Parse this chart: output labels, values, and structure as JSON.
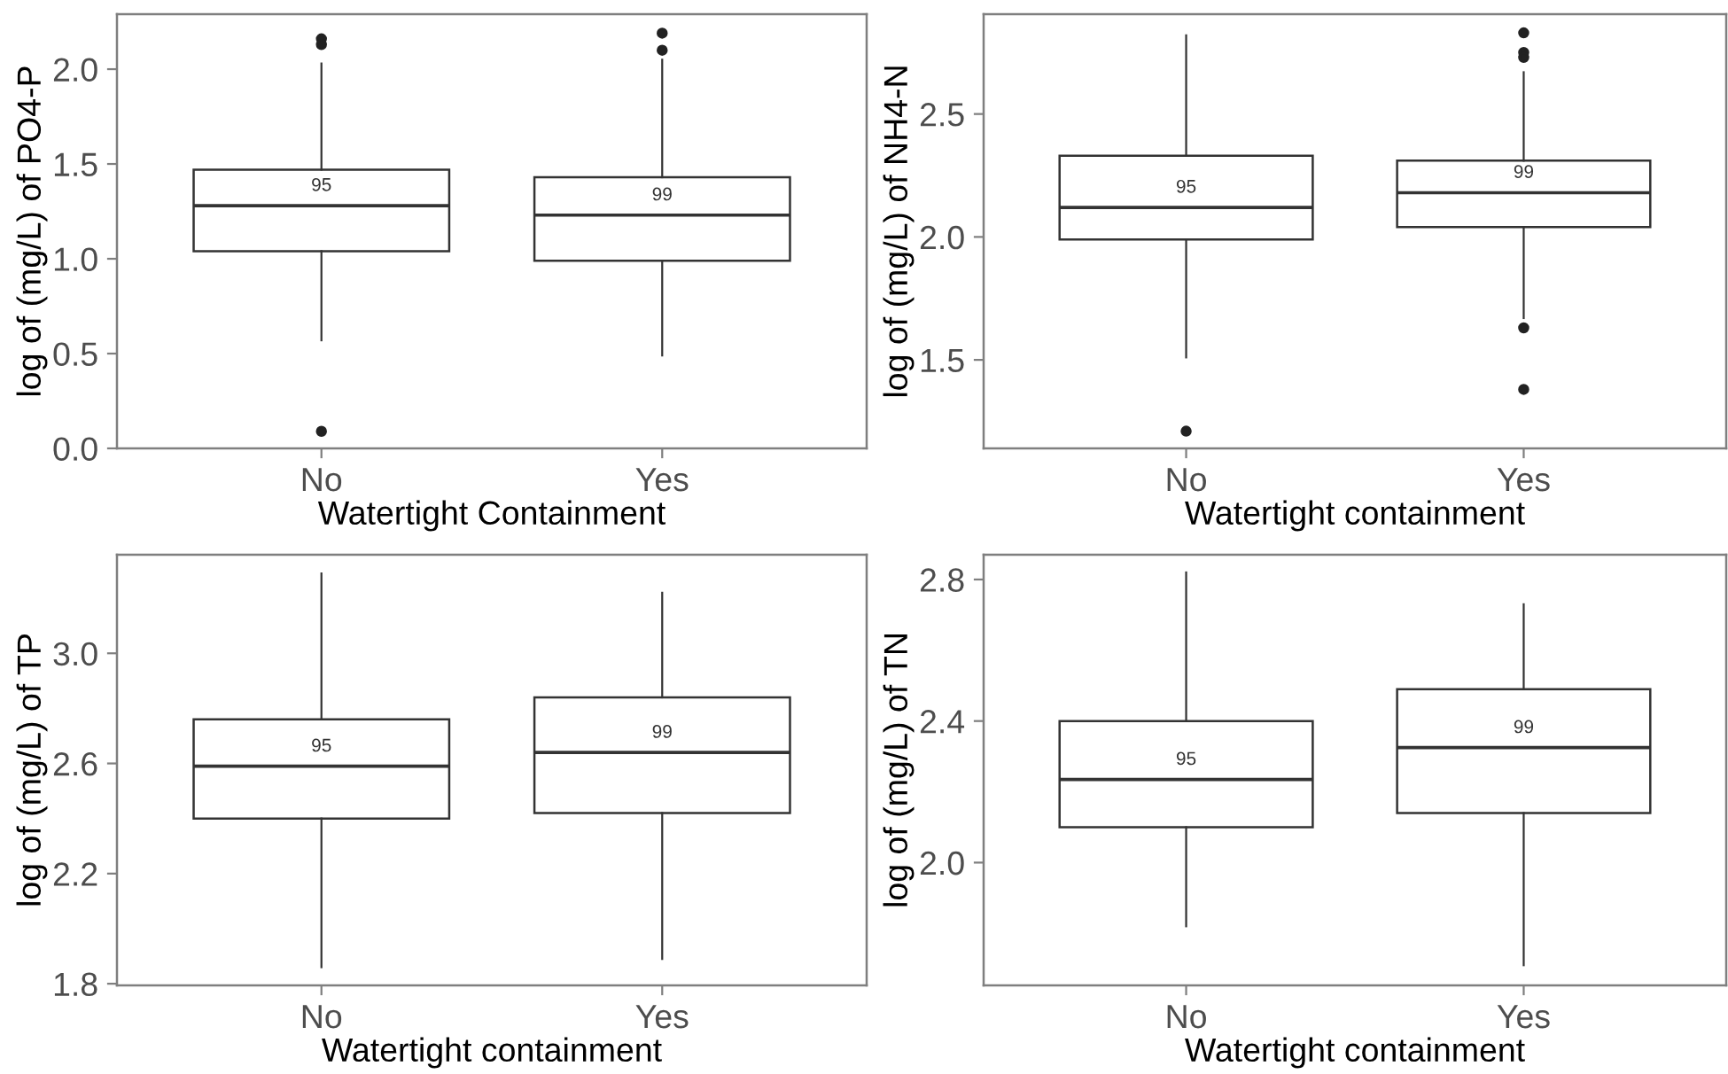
{
  "chart_data": [
    {
      "type": "box",
      "categories": [
        "No",
        "Yes"
      ],
      "xlabel": "Watertight Containment",
      "ylabel": "log of (mg/L) of PO4-P",
      "ylim": [
        0.0,
        2.29
      ],
      "yticks": [
        {
          "value": 0,
          "label": "0.0"
        },
        0.5,
        {
          "value": 1,
          "label": "1.0"
        },
        1.5,
        {
          "value": 2,
          "label": "2.0"
        }
      ],
      "grid": false,
      "boxes": [
        {
          "low": 0.57,
          "q1": 1.04,
          "median": 1.28,
          "q3": 1.47,
          "high": 2.03,
          "outliers": [
            2.16,
            2.13,
            0.09
          ]
        },
        {
          "low": 0.49,
          "q1": 0.99,
          "median": 1.23,
          "q3": 1.43,
          "high": 2.05,
          "outliers": [
            2.19,
            2.1
          ]
        }
      ],
      "annotations": [
        "95",
        "99"
      ]
    },
    {
      "type": "box",
      "categories": [
        "No",
        "Yes"
      ],
      "xlabel": "Watertight containment",
      "ylabel": "log of (mg/L) of NH4-N",
      "ylim": [
        1.14,
        2.906
      ],
      "yticks": [
        1.5,
        {
          "value": 2,
          "label": "2.0"
        },
        2.5
      ],
      "grid": false,
      "boxes": [
        {
          "low": 1.51,
          "q1": 1.99,
          "median": 2.12,
          "q3": 2.33,
          "high": 2.82,
          "outliers": [
            1.21
          ]
        },
        {
          "low": 1.67,
          "q1": 2.04,
          "median": 2.18,
          "q3": 2.31,
          "high": 2.67,
          "outliers": [
            2.83,
            2.75,
            2.73,
            1.63,
            1.38
          ]
        }
      ],
      "annotations": [
        "95",
        "99"
      ]
    },
    {
      "type": "box",
      "categories": [
        "No",
        "Yes"
      ],
      "xlabel": "Watertight containment",
      "ylabel": "log of (mg/L) of TP",
      "ylim": [
        1.794,
        3.358
      ],
      "yticks": [
        1.8,
        2.2,
        2.6,
        {
          "value": 3,
          "label": "3.0"
        }
      ],
      "grid": false,
      "boxes": [
        {
          "low": 1.86,
          "q1": 2.4,
          "median": 2.59,
          "q3": 2.76,
          "high": 3.29
        },
        {
          "low": 1.89,
          "q1": 2.42,
          "median": 2.64,
          "q3": 2.84,
          "high": 3.22
        }
      ],
      "annotations": [
        "95",
        "99"
      ]
    },
    {
      "type": "box",
      "categories": [
        "No",
        "Yes"
      ],
      "xlabel": "Watertight containment",
      "ylabel": "log of (mg/L) of TN",
      "ylim": [
        1.653,
        2.87
      ],
      "yticks": [
        {
          "value": 2,
          "label": "2.0"
        },
        2.4,
        2.8
      ],
      "grid": false,
      "boxes": [
        {
          "low": 1.82,
          "q1": 2.1,
          "median": 2.235,
          "q3": 2.4,
          "high": 2.82
        },
        {
          "low": 1.71,
          "q1": 2.14,
          "median": 2.325,
          "q3": 2.49,
          "high": 2.73
        }
      ],
      "annotations": [
        "95",
        "99"
      ]
    }
  ]
}
